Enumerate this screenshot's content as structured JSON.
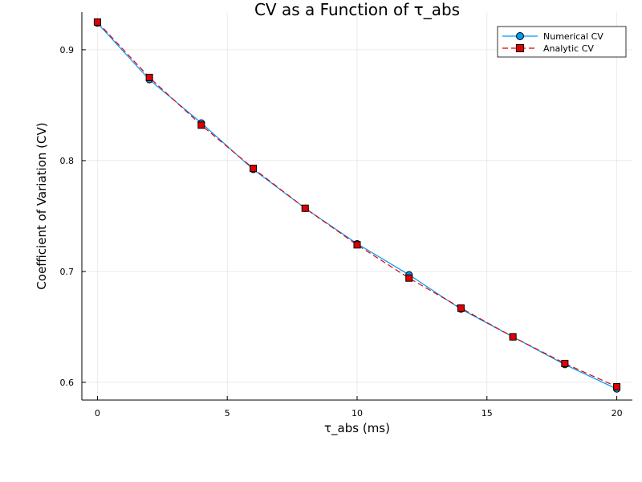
{
  "chart_data": {
    "type": "line",
    "title": "CV as a Function of τ_abs",
    "xlabel": "τ_abs (ms)",
    "ylabel": "Coefficient of Variation (CV)",
    "xlim": [
      -0.6,
      20.6
    ],
    "ylim": [
      0.584,
      0.934
    ],
    "xticks": [
      0,
      5,
      10,
      15,
      20
    ],
    "yticks": [
      0.6,
      0.7,
      0.8,
      0.9
    ],
    "xtick_labels": [
      "0",
      "5",
      "10",
      "15",
      "20"
    ],
    "ytick_labels": [
      "0.6",
      "0.7",
      "0.8",
      "0.9"
    ],
    "grid": true,
    "legend_position": "top-right",
    "x": [
      0,
      2,
      4,
      6,
      8,
      10,
      12,
      14,
      16,
      18,
      20
    ],
    "series": [
      {
        "name": "Numerical CV",
        "values": [
          0.924,
          0.873,
          0.834,
          0.792,
          0.757,
          0.725,
          0.697,
          0.666,
          0.641,
          0.616,
          0.594
        ],
        "color": "#009af9",
        "marker": "circle",
        "line": "solid"
      },
      {
        "name": "Analytic CV",
        "values": [
          0.925,
          0.875,
          0.832,
          0.793,
          0.757,
          0.724,
          0.694,
          0.667,
          0.641,
          0.617,
          0.596
        ],
        "color": "#e20000",
        "marker": "square",
        "line": "dashed"
      }
    ]
  }
}
